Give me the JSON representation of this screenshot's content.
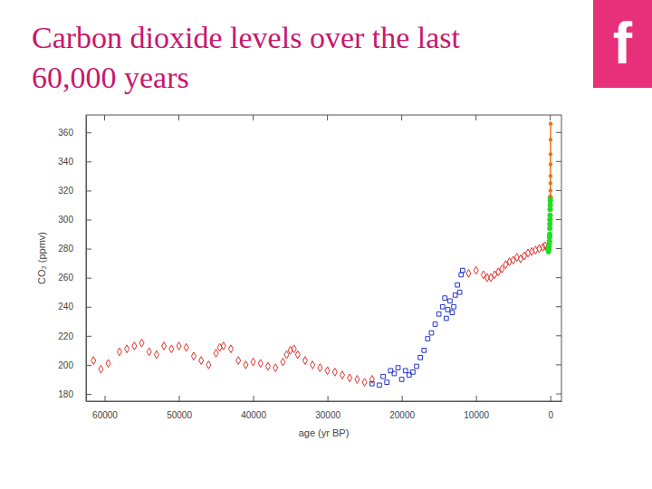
{
  "logo": "f",
  "chart_data": {
    "type": "scatter",
    "title": "Carbon dioxide levels over the last 60,000 years",
    "x_label": "age (yr BP)",
    "y_label": "CO₂ (ppmv)",
    "xlim": [
      62500,
      -1500
    ],
    "xticks": [
      60000,
      50000,
      40000,
      30000,
      20000,
      10000,
      0
    ],
    "ylim": [
      175,
      372
    ],
    "yticks": [
      180,
      200,
      220,
      240,
      260,
      280,
      300,
      320,
      340,
      360
    ],
    "series": [
      {
        "color": "#e0302a",
        "marker": "open-diamond",
        "x": [
          61500,
          60500,
          59500,
          58000,
          57000,
          56000,
          55000,
          54000,
          53000,
          52000,
          51000,
          50000,
          49000,
          48000,
          47000,
          46000,
          45000,
          44500,
          44000,
          43000,
          42000,
          41000,
          40000,
          39000,
          38000,
          37000,
          36000,
          35500,
          35000,
          34500,
          34000,
          33000,
          32000,
          31000,
          30000,
          29000,
          28000,
          27000,
          26000,
          25000,
          24000,
          11000,
          10000,
          9000,
          8500,
          8000,
          7500,
          7000,
          6500,
          6000,
          5500,
          5000,
          4500,
          4000,
          3500,
          3000,
          2500,
          2000,
          1500,
          1000,
          700,
          400,
          200
        ],
        "values": [
          203,
          197,
          201,
          209,
          211,
          213,
          215,
          209,
          207,
          213,
          211,
          213,
          212,
          206,
          203,
          200,
          208,
          212,
          213,
          211,
          203,
          200,
          202,
          201,
          199,
          198,
          202,
          207,
          210,
          211,
          207,
          203,
          200,
          198,
          196,
          195,
          193,
          191,
          190,
          188,
          190,
          263,
          265,
          262,
          260,
          260,
          262,
          264,
          266,
          269,
          271,
          272,
          274,
          273,
          275,
          277,
          278,
          279,
          280,
          281,
          282,
          280,
          279
        ]
      },
      {
        "color": "#2233cc",
        "marker": "open-square",
        "x": [
          24000,
          23000,
          22500,
          22000,
          21500,
          21000,
          20500,
          20000,
          19500,
          19000,
          18500,
          18000,
          17500,
          17000,
          16500,
          16000,
          15500,
          15000,
          14500,
          14200,
          14000,
          13800,
          13500,
          13200,
          13000,
          12800,
          12500,
          12200,
          12000,
          11800
        ],
        "values": [
          187,
          186,
          192,
          188,
          196,
          194,
          198,
          190,
          196,
          193,
          195,
          199,
          205,
          210,
          218,
          222,
          228,
          235,
          240,
          246,
          232,
          238,
          244,
          236,
          240,
          248,
          255,
          250,
          262,
          265
        ]
      },
      {
        "color": "#22dd22",
        "marker": "circle",
        "x": [
          250,
          200,
          170,
          150,
          120,
          100,
          80,
          60,
          50,
          40,
          30,
          20,
          10,
          5,
          0
        ],
        "values": [
          278,
          280,
          281,
          283,
          285,
          288,
          290,
          294,
          297,
          300,
          303,
          307,
          310,
          313,
          315
        ]
      },
      {
        "color": "#e8761a",
        "type": "line",
        "marker": "circle",
        "x": [
          -8,
          -15,
          -20,
          -25,
          -30,
          -35,
          -40,
          -45
        ],
        "values": [
          316,
          320,
          325,
          330,
          338,
          345,
          355,
          366
        ]
      }
    ]
  }
}
